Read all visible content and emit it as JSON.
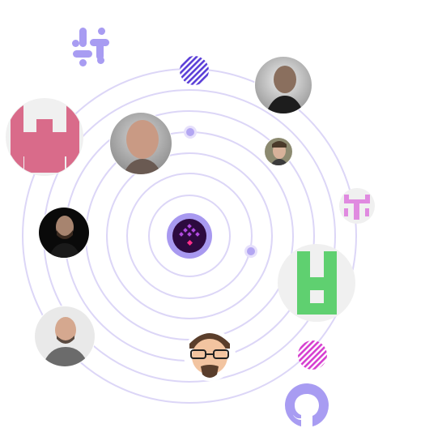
{
  "orbit": {
    "ring_color": "#dcd6f7",
    "dot_color": "#bfb4f2",
    "dot_inner": "#a898ef"
  },
  "center_logo": {
    "icon": "diamond-grid-logo-icon",
    "outer_color": "#a899f0",
    "inner_color": "#2d0a3f",
    "accent_color": "#b04ae0",
    "dot_color": "#ff2e8a"
  },
  "integrations": [
    {
      "name": "slack-logo-icon",
      "color": "#a89cf2"
    },
    {
      "name": "github-logo-icon",
      "color": "#a89cf2"
    }
  ],
  "identicons": [
    {
      "name": "pink-identicon-avatar",
      "color": "#d96b8a"
    },
    {
      "name": "green-identicon-avatar",
      "color": "#5fd070"
    },
    {
      "name": "pink-small-identicon-avatar",
      "color": "#e08ae0"
    }
  ],
  "stripe_balls": [
    {
      "name": "purple-striped-ball-icon",
      "color": "#5b3fd8"
    },
    {
      "name": "pink-striped-ball-icon",
      "color": "#d63fd0"
    }
  ],
  "avatars": [
    {
      "name": "avatar-bald-man-top-right"
    },
    {
      "name": "avatar-man-smiling-left"
    },
    {
      "name": "avatar-young-man-small"
    },
    {
      "name": "avatar-man-beard-dark"
    },
    {
      "name": "avatar-man-gray-shirt"
    },
    {
      "name": "avatar-cartoon-glasses"
    }
  ]
}
